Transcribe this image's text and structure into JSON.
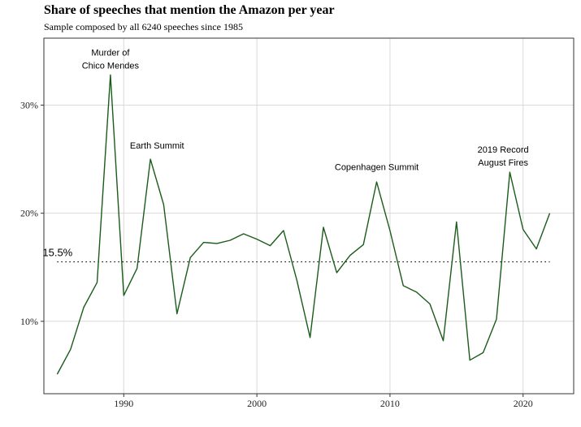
{
  "chart_data": {
    "type": "line",
    "title": "Share of speeches that mention the Amazon per year",
    "subtitle": "Sample composed by all 6240 speeches since 1985",
    "xlabel": "",
    "ylabel": "",
    "x": [
      1985,
      1986,
      1987,
      1988,
      1989,
      1990,
      1991,
      1992,
      1993,
      1994,
      1995,
      1996,
      1997,
      1998,
      1999,
      2000,
      2001,
      2002,
      2003,
      2004,
      2005,
      2006,
      2007,
      2008,
      2009,
      2010,
      2011,
      2012,
      2013,
      2014,
      2015,
      2016,
      2017,
      2018,
      2019,
      2020,
      2021,
      2022
    ],
    "series": [
      {
        "name": "",
        "color": "#1a5c1a",
        "values": [
          5.1,
          7.4,
          11.3,
          13.6,
          32.8,
          12.4,
          14.9,
          25.0,
          20.8,
          10.7,
          15.9,
          17.3,
          17.2,
          17.5,
          18.1,
          17.6,
          17.0,
          18.4,
          13.8,
          8.5,
          18.7,
          14.5,
          16.1,
          17.1,
          22.9,
          18.4,
          13.3,
          12.7,
          11.6,
          8.2,
          19.2,
          6.4,
          7.1,
          10.2,
          23.8,
          18.5,
          16.7,
          20.0
        ]
      }
    ],
    "xlim": [
      1984,
      2023.8
    ],
    "ylim": [
      3.3,
      36.2
    ],
    "xticks": [
      1990,
      2000,
      2010,
      2020
    ],
    "xtick_labels": [
      "1990",
      "2000",
      "2010",
      "2020"
    ],
    "yticks": [
      10,
      20,
      30
    ],
    "ytick_labels": [
      "10%",
      "20%",
      "30%"
    ],
    "grid": true,
    "average": {
      "value": 15.5,
      "label": "15.5%"
    },
    "annotations": [
      {
        "lines": [
          "Murder of",
          "Chico Mendes"
        ],
        "x": 1989,
        "y": 34.6
      },
      {
        "lines": [
          "Earth Summit"
        ],
        "x": 1992.5,
        "y": 26.0
      },
      {
        "lines": [
          "Copenhagen Summit"
        ],
        "x": 2009,
        "y": 24.0
      },
      {
        "lines": [
          "2019 Record",
          "August Fires"
        ],
        "x": 2018.5,
        "y": 25.6
      }
    ]
  }
}
